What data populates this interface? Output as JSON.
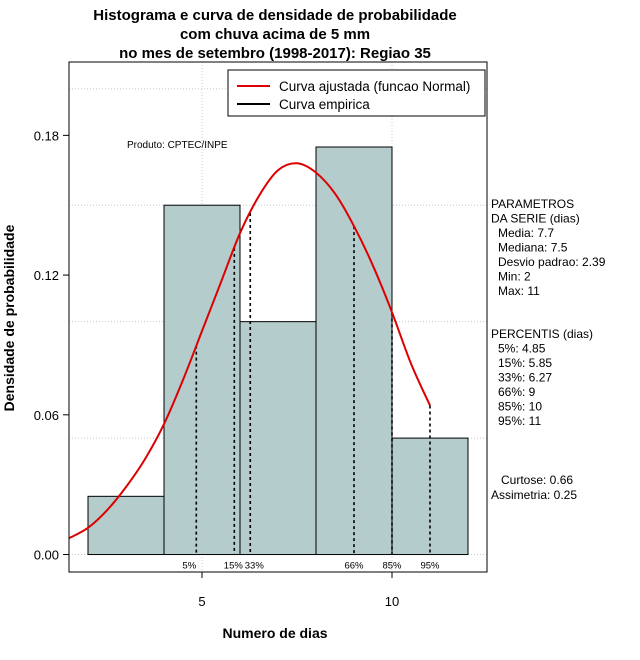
{
  "chart_data": {
    "type": "bar",
    "title_lines": [
      "Histograma e curva de densidade de probabilidade",
      "com chuva acima de 5 mm",
      "no mes de setembro (1998-2017): Regiao 35"
    ],
    "xlabel": "Numero de dias",
    "ylabel": "Densidade de probabilidade",
    "xlim": [
      1.5,
      12.5
    ],
    "ylim": [
      -0.0075,
      0.2115
    ],
    "x_ticks": [
      5,
      10
    ],
    "y_ticks": [
      0.0,
      0.06,
      0.12,
      0.18
    ],
    "y_tick_labels": [
      "0.00",
      "0.06",
      "0.12",
      "0.18"
    ],
    "grid": true,
    "bars": [
      {
        "x0": 2,
        "x1": 4,
        "value": 0.025
      },
      {
        "x0": 4,
        "x1": 6,
        "value": 0.15
      },
      {
        "x0": 6,
        "x1": 8,
        "value": 0.1
      },
      {
        "x0": 8,
        "x1": 10,
        "value": 0.175
      },
      {
        "x0": 10,
        "x1": 12,
        "value": 0.05
      }
    ],
    "bar_color": "#b5cccc",
    "curve_color": "#dd0000",
    "curve": {
      "x": [
        1.5,
        2,
        2.5,
        3,
        3.5,
        4,
        4.5,
        5,
        5.5,
        6,
        6.5,
        7,
        7.5,
        8,
        8.5,
        9,
        9.5,
        10,
        10.5,
        11
      ],
      "y": [
        0.007,
        0.0115,
        0.019,
        0.029,
        0.041,
        0.056,
        0.075,
        0.096,
        0.117,
        0.138,
        0.154,
        0.165,
        0.168,
        0.164,
        0.155,
        0.141,
        0.124,
        0.104,
        0.082,
        0.064
      ]
    },
    "percentiles": [
      {
        "label": "5%",
        "x": 4.85
      },
      {
        "label": "15%",
        "x": 5.85
      },
      {
        "label": "33%",
        "x": 6.27
      },
      {
        "label": "66%",
        "x": 9
      },
      {
        "label": "85%",
        "x": 10
      },
      {
        "label": "95%",
        "x": 11
      }
    ],
    "legend": {
      "position": "top-right",
      "entries": [
        {
          "label": "Curva ajustada (funcao Normal)",
          "color": "#dd0000"
        },
        {
          "label": "Curva empirica",
          "color": "#000000"
        }
      ]
    },
    "annotation": "Produto: CPTEC/INPE",
    "parametros": {
      "header": [
        "PARAMETROS",
        "DA SERIE (dias)"
      ],
      "lines": [
        "Media: 7.7",
        "Mediana: 7.5",
        "Desvio padrao: 2.39",
        "Min: 2",
        "Max: 11"
      ]
    },
    "percentis_panel": {
      "header": [
        "PERCENTIS (dias)"
      ],
      "lines": [
        "5%: 4.85",
        "15%: 5.85",
        "33%: 6.27",
        "66%: 9",
        "85%: 10",
        "95%: 11"
      ]
    },
    "stats": [
      "Curtose: 0.66",
      "Assimetria: 0.25"
    ]
  }
}
